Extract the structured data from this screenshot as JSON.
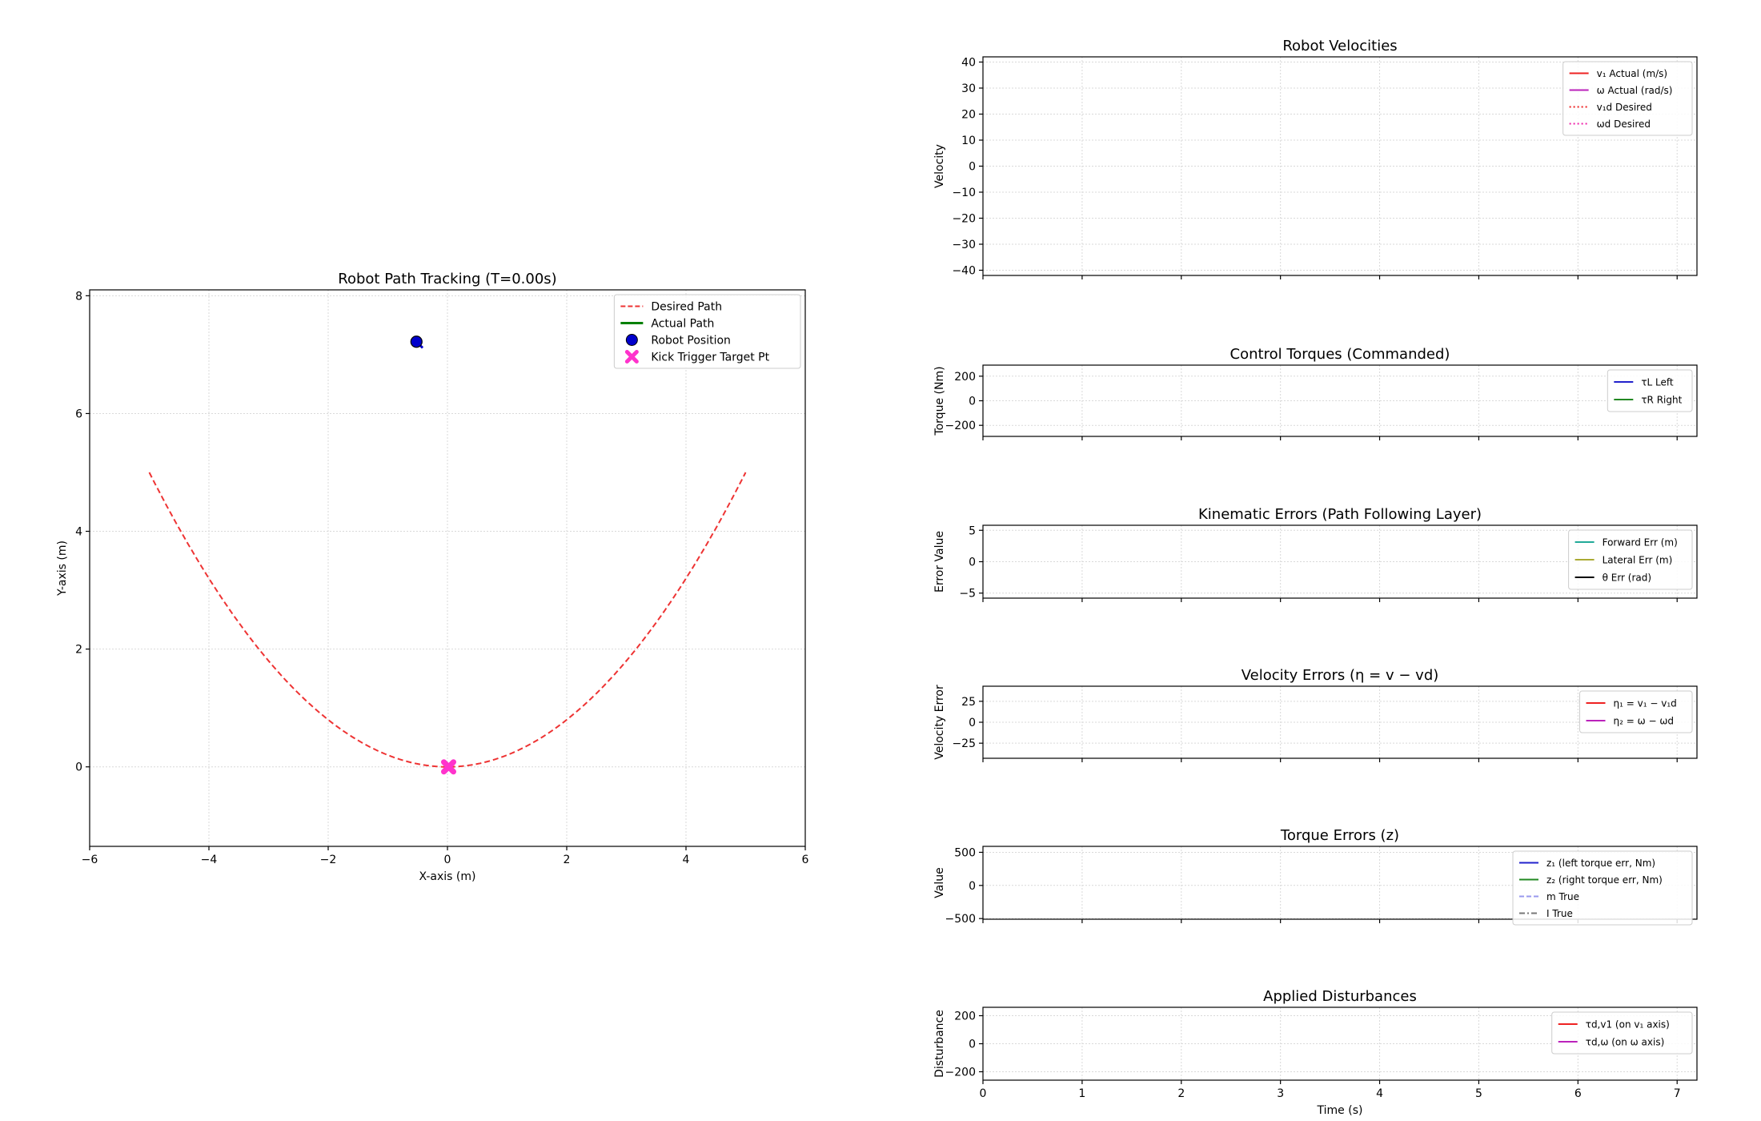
{
  "chart_data": [
    {
      "id": "path",
      "type": "line",
      "title": "Robot Path Tracking (T=0.00s)",
      "xlabel": "X-axis (m)",
      "ylabel": "Y-axis (m)",
      "xlim": [
        -6,
        6
      ],
      "ylim": [
        -1.35,
        8.1
      ],
      "xticks": [
        -6,
        -4,
        -2,
        0,
        2,
        4,
        6
      ],
      "yticks": [
        0,
        2,
        4,
        6,
        8
      ],
      "grid": true,
      "legend_position": "upper-right",
      "desired_path": {
        "x_range": [
          -5,
          5
        ],
        "y_formula": "0.2*x^2",
        "color": "#ee3333"
      },
      "robot_position": {
        "x": -0.52,
        "y": 7.22,
        "heading_deg": -45,
        "color": "#0000cc"
      },
      "kick_target": {
        "x": 0.02,
        "y": 0.0,
        "color": "#ff33cc"
      },
      "legend": [
        {
          "label": "Desired Path",
          "style": "dashed",
          "color": "#ee3333"
        },
        {
          "label": "Actual Path",
          "style": "solid",
          "color": "#008000"
        },
        {
          "label": "Robot Position",
          "style": "circle",
          "color": "#0000cc"
        },
        {
          "label": "Kick Trigger Target Pt",
          "style": "x-marker",
          "color": "#ff33cc"
        }
      ]
    },
    {
      "id": "vel",
      "type": "line",
      "title": "Robot Velocities",
      "ylabel": "Velocity",
      "ylim": [
        -42,
        42
      ],
      "yticks": [
        40,
        30,
        20,
        10,
        0,
        -10,
        -20,
        -30,
        -40
      ],
      "legend_position": "upper-right",
      "legend": [
        {
          "label": "v₁ Actual (m/s)",
          "style": "solid",
          "color": "#ee2222"
        },
        {
          "label": "ω Actual (rad/s)",
          "style": "solid",
          "color": "#bb22bb"
        },
        {
          "label": "v₁d Desired",
          "style": "dotted",
          "color": "#ee2222"
        },
        {
          "label": "ωd Desired",
          "style": "dotted",
          "color": "#ee22aa"
        }
      ]
    },
    {
      "id": "torq",
      "type": "line",
      "title": "Control Torques (Commanded)",
      "ylabel": "Torque (Nm)",
      "ylim": [
        -290,
        290
      ],
      "yticks": [
        200,
        0,
        -200
      ],
      "legend_position": "upper-right",
      "legend": [
        {
          "label": "τL Left",
          "style": "solid",
          "color": "#2222cc"
        },
        {
          "label": "τR Right",
          "style": "solid",
          "color": "#228822"
        }
      ]
    },
    {
      "id": "kin",
      "type": "line",
      "title": "Kinematic Errors (Path Following Layer)",
      "ylabel": "Error Value",
      "ylim": [
        -5.8,
        5.8
      ],
      "yticks": [
        5,
        0,
        -5
      ],
      "legend_position": "upper-right",
      "legend": [
        {
          "label": "Forward Err (m)",
          "style": "solid",
          "color": "#22aa99"
        },
        {
          "label": "Lateral Err (m)",
          "style": "solid",
          "color": "#aaaa33"
        },
        {
          "label": "θ Err (rad)",
          "style": "solid",
          "color": "#000000"
        }
      ]
    },
    {
      "id": "velerr",
      "type": "line",
      "title": "Velocity Errors (η = v − vd)",
      "ylabel": "Velocity Error",
      "ylim": [
        -43,
        43
      ],
      "yticks": [
        25,
        0,
        -25
      ],
      "legend_position": "upper-right",
      "legend": [
        {
          "label": "η₁ = v₁ − v₁d",
          "style": "solid",
          "color": "#ee2222"
        },
        {
          "label": "η₂ = ω − ωd",
          "style": "solid",
          "color": "#bb22bb"
        }
      ]
    },
    {
      "id": "torqerr",
      "type": "line",
      "title": "Torque Errors (z)",
      "ylabel": "Value",
      "ylim": [
        -510,
        590
      ],
      "yticks": [
        500,
        0,
        -500
      ],
      "legend_position": "upper-right",
      "legend": [
        {
          "label": "z₁ (left torque err, Nm)",
          "style": "solid",
          "color": "#2222cc"
        },
        {
          "label": "z₂ (right torque err, Nm)",
          "style": "solid",
          "color": "#228822"
        },
        {
          "label": "m True",
          "style": "dashed",
          "color": "#9999ee"
        },
        {
          "label": "I True",
          "style": "dashdot",
          "color": "#777777"
        }
      ]
    },
    {
      "id": "dist",
      "type": "line",
      "title": "Applied Disturbances",
      "ylabel": "Disturbance",
      "xlabel": "Time (s)",
      "ylim": [
        -260,
        260
      ],
      "yticks": [
        200,
        0,
        -200
      ],
      "xlim": [
        0,
        7.2
      ],
      "xticks": [
        0,
        1,
        2,
        3,
        4,
        5,
        6,
        7
      ],
      "legend_position": "upper-right",
      "legend": [
        {
          "label": "τd,v1 (on v₁ axis)",
          "style": "solid",
          "color": "#ee2222"
        },
        {
          "label": "τd,ω (on ω axis)",
          "style": "solid",
          "color": "#bb22bb"
        }
      ]
    }
  ]
}
